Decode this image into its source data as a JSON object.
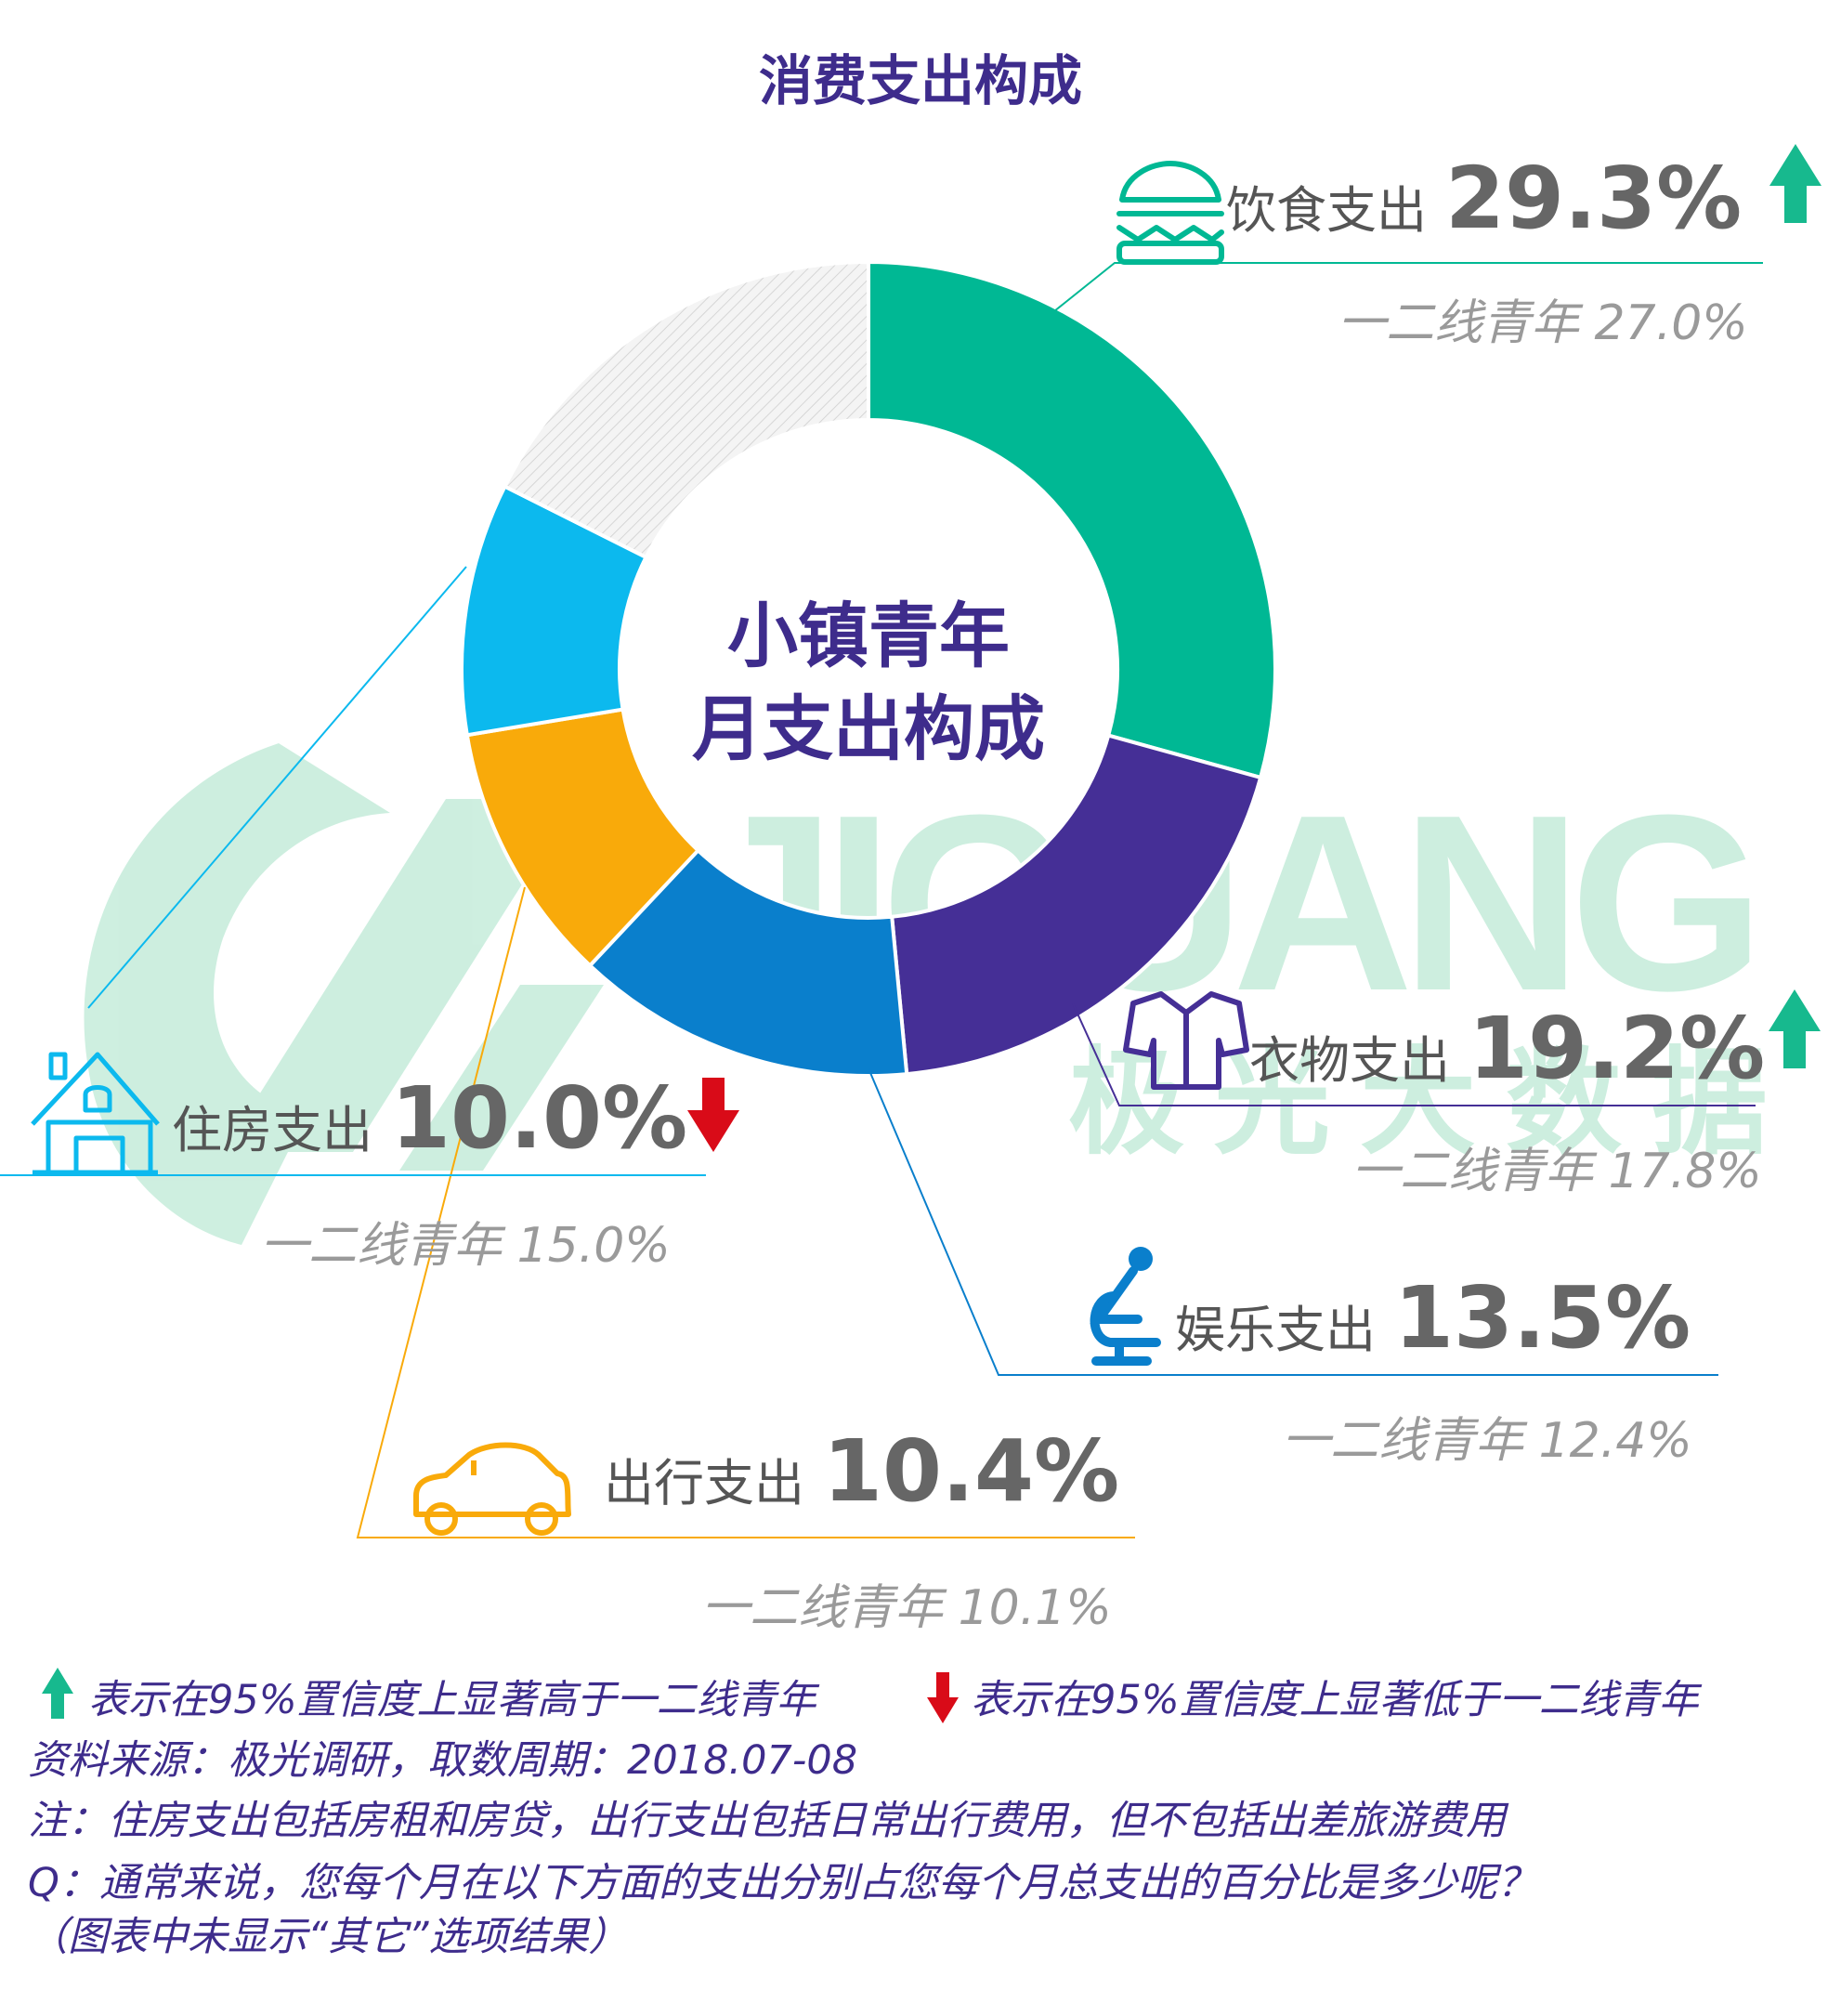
{
  "title": "消费支出构成",
  "center_label": {
    "line1": "小镇青年",
    "line2": "月支出构成"
  },
  "watermark": {
    "latin": "JIGUANG",
    "chinese": "极光大数据"
  },
  "chart_data": {
    "type": "pie",
    "title": "消费支出构成",
    "center_label": "小镇青年 月支出构成",
    "slices": [
      {
        "name": "饮食支出",
        "value": 29.3,
        "label": "29.3%",
        "compare": "一二线青年 27.0%",
        "trend": "up",
        "color": "#00b894",
        "icon": "burger-icon"
      },
      {
        "name": "衣物支出",
        "value": 19.2,
        "label": "19.2%",
        "compare": "一二线青年 17.8%",
        "trend": "up",
        "color": "#452f96",
        "icon": "shirt-icon"
      },
      {
        "name": "娱乐支出",
        "value": 13.5,
        "label": "13.5%",
        "compare": "一二线青年 12.4%",
        "trend": "none",
        "color": "#0a7fcc",
        "icon": "microphone-icon"
      },
      {
        "name": "出行支出",
        "value": 10.4,
        "label": "10.4%",
        "compare": "一二线青年 10.1%",
        "trend": "none",
        "color": "#f9aa0a",
        "icon": "car-icon"
      },
      {
        "name": "住房支出",
        "value": 10.0,
        "label": "10.0%",
        "compare": "一二线青年 15.0%",
        "trend": "down",
        "color": "#0cb9ee",
        "icon": "house-icon"
      },
      {
        "name": "其它",
        "value": 17.6,
        "label": "",
        "compare": "",
        "trend": "none",
        "color": "#f0f0f0",
        "icon": ""
      }
    ],
    "colors": {
      "up_arrow": "#17b98e",
      "down_arrow": "#d90b18",
      "title": "#3e2c8c",
      "other_slice": "#f0f0f0"
    }
  },
  "footer": {
    "up_legend": "表示在95%置信度上显著高于一二线青年",
    "down_legend": "表示在95%置信度上显著低于一二线青年",
    "source": "资料来源：极光调研，取数周期：2018.07-08",
    "note": "注：住房支出包括房租和房贷，出行支出包括日常出行费用，但不包括出差旅游费用",
    "question": "Q：通常来说，您每个月在以下方面的支出分别占您每个月总支出的百分比是多少呢？",
    "paren": "（图表中未显示“其它”选项结果）"
  }
}
